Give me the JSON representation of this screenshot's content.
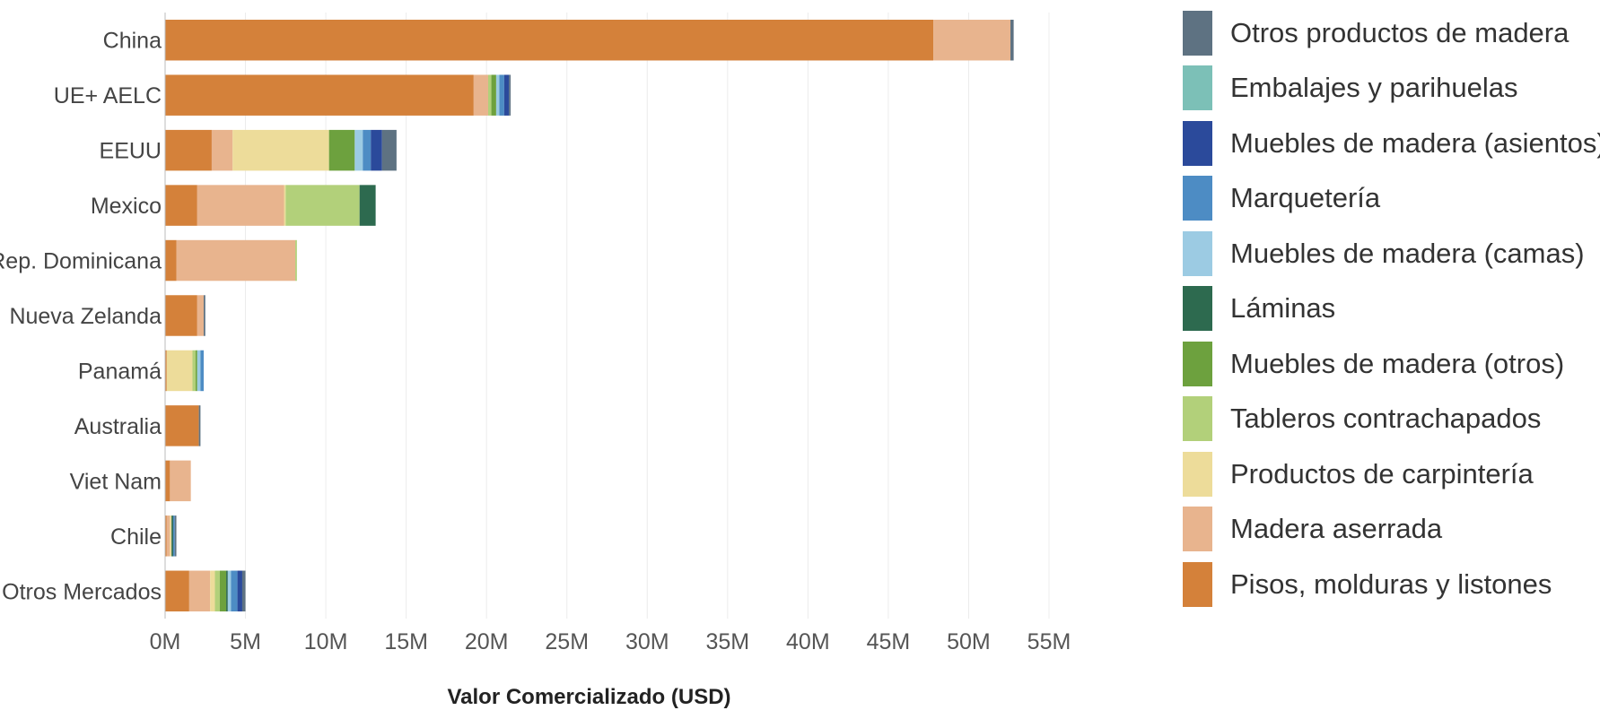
{
  "chart_data": {
    "type": "bar",
    "orientation": "horizontal",
    "stacked": true,
    "title": "",
    "xlabel": "Valor Comercializado (USD)",
    "ylabel": "",
    "xlim": [
      0,
      55000000
    ],
    "x_ticks": [
      0,
      5000000,
      10000000,
      15000000,
      20000000,
      25000000,
      30000000,
      35000000,
      40000000,
      45000000,
      50000000,
      55000000
    ],
    "x_tick_labels": [
      "0M",
      "5M",
      "10M",
      "15M",
      "20M",
      "25M",
      "30M",
      "35M",
      "40M",
      "45M",
      "50M",
      "55M"
    ],
    "grid": true,
    "legend_position": "right",
    "categories": [
      "China",
      "UE+ AELC",
      "EEUU",
      "Mexico",
      "Rep. Dominicana",
      "Nueva Zelanda",
      "Panamá",
      "Australia",
      "Viet Nam",
      "Chile",
      "Otros Mercados"
    ],
    "series": [
      {
        "name": "Pisos, molduras y listones",
        "color": "#d4813a",
        "values": [
          47800000,
          19200000,
          2900000,
          2000000,
          700000,
          2000000,
          100000,
          2100000,
          300000,
          100000,
          1500000
        ]
      },
      {
        "name": "Madera aserrada",
        "color": "#e8b48e",
        "values": [
          4800000,
          900000,
          1300000,
          5400000,
          7400000,
          400000,
          0,
          0,
          1300000,
          200000,
          1300000
        ]
      },
      {
        "name": "Productos de carpintería",
        "color": "#eddc9a",
        "values": [
          0,
          0,
          6000000,
          100000,
          0,
          0,
          1600000,
          0,
          0,
          100000,
          300000
        ]
      },
      {
        "name": "Tableros contrachapados",
        "color": "#b2d07a",
        "values": [
          0,
          200000,
          0,
          4600000,
          100000,
          0,
          200000,
          0,
          0,
          0,
          300000
        ]
      },
      {
        "name": "Muebles de madera (otros)",
        "color": "#6da13e",
        "values": [
          0,
          300000,
          1600000,
          0,
          0,
          0,
          100000,
          0,
          0,
          0,
          400000
        ]
      },
      {
        "name": "Láminas",
        "color": "#2d6a4f",
        "values": [
          0,
          0,
          0,
          1000000,
          0,
          0,
          0,
          0,
          0,
          100000,
          100000
        ]
      },
      {
        "name": "Muebles de madera (camas)",
        "color": "#9ccbe3",
        "values": [
          0,
          200000,
          500000,
          0,
          0,
          0,
          200000,
          0,
          0,
          0,
          200000
        ]
      },
      {
        "name": "Marquetería",
        "color": "#4d8cc4",
        "values": [
          0,
          300000,
          500000,
          0,
          0,
          0,
          200000,
          0,
          0,
          100000,
          400000
        ]
      },
      {
        "name": "Muebles de madera (asientos)",
        "color": "#2b4a9b",
        "values": [
          0,
          300000,
          700000,
          0,
          0,
          0,
          0,
          0,
          0,
          0,
          300000
        ]
      },
      {
        "name": "Embalajes y parihuelas",
        "color": "#7cc0b7",
        "values": [
          0,
          0,
          0,
          0,
          0,
          0,
          0,
          0,
          0,
          0,
          0
        ]
      },
      {
        "name": "Otros productos de madera",
        "color": "#5e7282",
        "values": [
          200000,
          100000,
          900000,
          0,
          0,
          100000,
          0,
          100000,
          0,
          100000,
          200000
        ]
      }
    ]
  }
}
